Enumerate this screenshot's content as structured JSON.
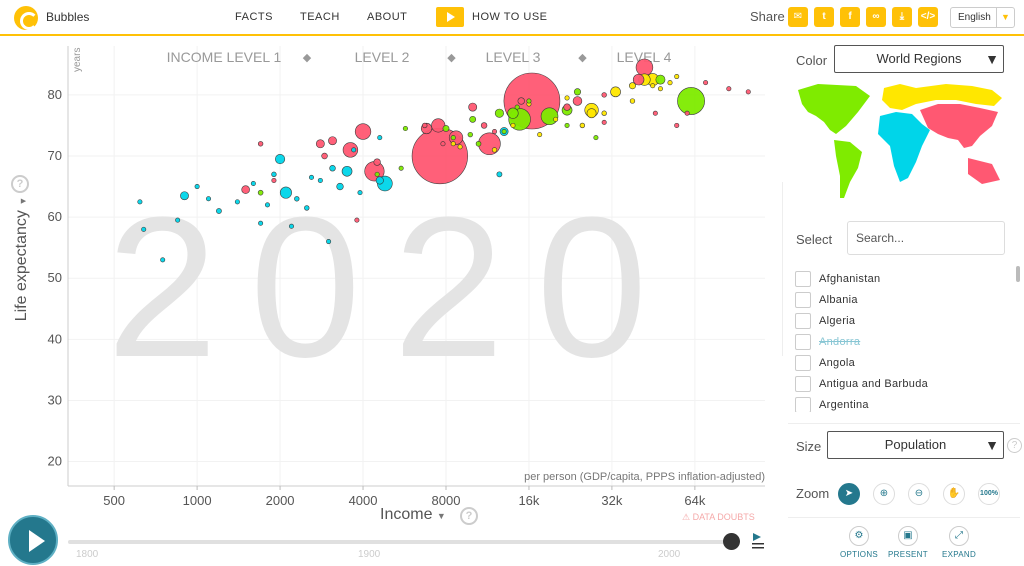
{
  "app": {
    "title": "Bubbles"
  },
  "nav": {
    "facts": "FACTS",
    "teach": "TEACH",
    "about": "ABOUT",
    "how_to_use": "HOW TO USE"
  },
  "share": {
    "label": "Share"
  },
  "language": {
    "selected": "English"
  },
  "colors": {
    "accent": "#ffc107",
    "teal": "#24788d",
    "asia": "#ff5872",
    "africa": "#00d5e9",
    "europe": "#ffe700",
    "americas": "#7feb00"
  },
  "chart_data": {
    "type": "scatter",
    "year_watermark": "2020",
    "xlabel": "Income",
    "x_unit_note": "per person (GDP/capita, PPPS inflation-adjusted)",
    "ylabel": "Life expectancy",
    "y_unit": "years",
    "x_scale": "log",
    "xlim": [
      340,
      115000
    ],
    "ylim": [
      16,
      88
    ],
    "x_ticks": [
      {
        "v": 500,
        "label": "500"
      },
      {
        "v": 1000,
        "label": "1000"
      },
      {
        "v": 2000,
        "label": "2000"
      },
      {
        "v": 4000,
        "label": "4000"
      },
      {
        "v": 8000,
        "label": "8000"
      },
      {
        "v": 16000,
        "label": "16k"
      },
      {
        "v": 32000,
        "label": "32k"
      },
      {
        "v": 64000,
        "label": "64k"
      }
    ],
    "y_ticks": [
      20,
      30,
      40,
      50,
      60,
      70,
      80
    ],
    "income_levels": [
      "INCOME LEVEL 1",
      "LEVEL 2",
      "LEVEL 3",
      "LEVEL 4"
    ],
    "data_doubts": "DATA DOUBTS",
    "bubbles": [
      [
        16400,
        79,
        1400,
        "asia"
      ],
      [
        7600,
        70,
        1380,
        "asia"
      ],
      [
        11500,
        72,
        215,
        "asia"
      ],
      [
        4400,
        67.5,
        170,
        "asia"
      ],
      [
        4000,
        74,
        110,
        "asia"
      ],
      [
        3600,
        71,
        97,
        "asia"
      ],
      [
        8700,
        73,
        83,
        "asia"
      ],
      [
        7500,
        75,
        81,
        "asia"
      ],
      [
        6800,
        74.5,
        50,
        "asia"
      ],
      [
        42000,
        84.5,
        126,
        "asia"
      ],
      [
        40000,
        82.5,
        52,
        "asia"
      ],
      [
        3100,
        72.5,
        30,
        "asia"
      ],
      [
        1500,
        64.5,
        28,
        "asia"
      ],
      [
        1700,
        72,
        10,
        "asia"
      ],
      [
        2800,
        72,
        30,
        "asia"
      ],
      [
        15000,
        79,
        20,
        "asia"
      ],
      [
        22000,
        78,
        20,
        "asia"
      ],
      [
        10000,
        78,
        30,
        "asia"
      ],
      [
        2900,
        70,
        15,
        "asia"
      ],
      [
        4500,
        69,
        20,
        "asia"
      ],
      [
        60000,
        77,
        8,
        "asia"
      ],
      [
        85000,
        81,
        2,
        "asia"
      ],
      [
        6700,
        75,
        10,
        "asia"
      ],
      [
        11000,
        75,
        15,
        "asia"
      ],
      [
        1900,
        66,
        8,
        "asia"
      ],
      [
        30000,
        80,
        10,
        "asia"
      ],
      [
        70000,
        82,
        6,
        "asia"
      ],
      [
        100000,
        80.5,
        3,
        "asia"
      ],
      [
        24000,
        79,
        35,
        "asia"
      ],
      [
        3800,
        59.5,
        6,
        "asia"
      ],
      [
        30000,
        75.5,
        8,
        "asia"
      ],
      [
        46000,
        77,
        5,
        "asia"
      ],
      [
        7800,
        72,
        7,
        "asia"
      ],
      [
        12000,
        74,
        5,
        "asia"
      ],
      [
        55000,
        75,
        4,
        "asia"
      ],
      [
        4800,
        65.5,
        100,
        "africa"
      ],
      [
        2100,
        64,
        58,
        "africa"
      ],
      [
        2000,
        69.5,
        40,
        "africa"
      ],
      [
        900,
        63.5,
        30,
        "africa"
      ],
      [
        3500,
        67.5,
        45,
        "africa"
      ],
      [
        4600,
        66,
        25,
        "africa"
      ],
      [
        3100,
        68,
        15,
        "africa"
      ],
      [
        1200,
        61,
        12,
        "africa"
      ],
      [
        2300,
        63,
        10,
        "africa"
      ],
      [
        1600,
        65.5,
        8,
        "africa"
      ],
      [
        3900,
        64,
        6,
        "africa"
      ],
      [
        620,
        62.5,
        5,
        "africa"
      ],
      [
        850,
        59.5,
        4,
        "africa"
      ],
      [
        2500,
        61.5,
        10,
        "africa"
      ],
      [
        1700,
        59,
        6,
        "africa"
      ],
      [
        1400,
        62.5,
        5,
        "africa"
      ],
      [
        12500,
        67,
        12,
        "africa"
      ],
      [
        13000,
        74,
        30,
        "africa"
      ],
      [
        3300,
        65,
        20,
        "africa"
      ],
      [
        1100,
        63,
        8,
        "africa"
      ],
      [
        640,
        58,
        6,
        "africa"
      ],
      [
        1800,
        62,
        8,
        "africa"
      ],
      [
        2600,
        66.5,
        6,
        "africa"
      ],
      [
        750,
        53,
        4,
        "africa"
      ],
      [
        3700,
        71,
        5,
        "africa"
      ],
      [
        2200,
        58.5,
        7,
        "africa"
      ],
      [
        1000,
        65,
        5,
        "africa"
      ],
      [
        1900,
        67,
        10,
        "africa"
      ],
      [
        3000,
        56,
        3,
        "africa"
      ],
      [
        2800,
        66,
        5,
        "africa"
      ],
      [
        4600,
        73,
        8,
        "africa"
      ],
      [
        27000,
        77.5,
        83,
        "europe"
      ],
      [
        45000,
        82.5,
        67,
        "europe"
      ],
      [
        42000,
        82.5,
        60,
        "europe"
      ],
      [
        33000,
        80.5,
        45,
        "europe"
      ],
      [
        38000,
        81.5,
        18,
        "europe"
      ],
      [
        48000,
        81,
        8,
        "europe"
      ],
      [
        52000,
        82,
        9,
        "europe"
      ],
      [
        38000,
        79,
        10,
        "europe"
      ],
      [
        27000,
        77,
        38,
        "europe"
      ],
      [
        25000,
        75,
        10,
        "europe"
      ],
      [
        20000,
        76,
        5,
        "europe"
      ],
      [
        30000,
        77,
        10,
        "europe"
      ],
      [
        12000,
        71,
        10,
        "europe"
      ],
      [
        9000,
        71.5,
        4,
        "europe"
      ],
      [
        45000,
        81.5,
        6,
        "europe"
      ],
      [
        55000,
        83,
        3,
        "europe"
      ],
      [
        16000,
        78.5,
        8,
        "europe"
      ],
      [
        22000,
        79.5,
        5,
        "europe"
      ],
      [
        17500,
        73.5,
        3,
        "europe"
      ],
      [
        14000,
        75,
        3,
        "europe"
      ],
      [
        8500,
        72,
        4,
        "europe"
      ],
      [
        62000,
        79,
        330,
        "americas"
      ],
      [
        14800,
        76,
        212,
        "americas"
      ],
      [
        19000,
        76.5,
        128,
        "americas"
      ],
      [
        48000,
        82.5,
        38,
        "americas"
      ],
      [
        14000,
        77,
        50,
        "americas"
      ],
      [
        22000,
        77.5,
        45,
        "americas"
      ],
      [
        12500,
        77,
        32,
        "americas"
      ],
      [
        24000,
        80.5,
        19,
        "americas"
      ],
      [
        10000,
        76,
        17,
        "americas"
      ],
      [
        8000,
        74.5,
        17,
        "americas"
      ],
      [
        16000,
        79,
        5,
        "americas"
      ],
      [
        10500,
        72,
        11,
        "americas"
      ],
      [
        9800,
        73.5,
        10,
        "americas"
      ],
      [
        8500,
        73,
        9,
        "americas"
      ],
      [
        1700,
        64,
        11,
        "americas"
      ],
      [
        4500,
        67,
        7,
        "americas"
      ],
      [
        5700,
        74.5,
        9,
        "americas"
      ],
      [
        14500,
        78,
        3,
        "americas"
      ],
      [
        13000,
        74,
        5,
        "americas"
      ],
      [
        22000,
        75,
        3,
        "americas"
      ],
      [
        28000,
        73,
        1,
        "americas"
      ],
      [
        5500,
        68,
        1,
        "americas"
      ]
    ]
  },
  "panel": {
    "color_label": "Color",
    "color_select": "World Regions",
    "select_label": "Select",
    "search_placeholder": "Search...",
    "countries": [
      "Afghanistan",
      "Albania",
      "Algeria",
      "Andorra",
      "Angola",
      "Antigua and Barbuda",
      "Argentina"
    ],
    "size_label": "Size",
    "size_select": "Population",
    "zoom_label": "Zoom",
    "zoom_100": "100%"
  },
  "bottom": {
    "options": "OPTIONS",
    "present": "PRESENT",
    "expand": "EXPAND"
  },
  "timeline": {
    "labels": [
      "1800",
      "1900",
      "2000"
    ],
    "current_year": 2020
  }
}
